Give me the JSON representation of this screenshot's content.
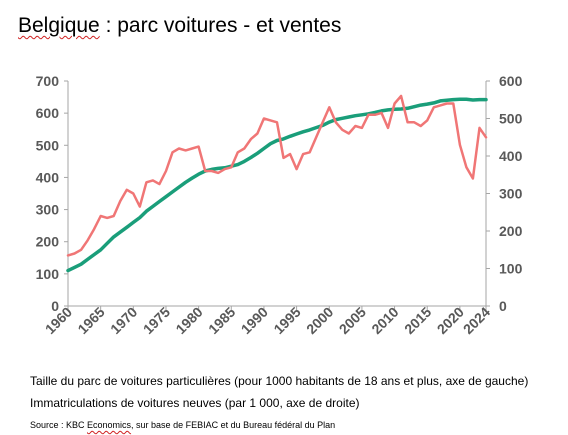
{
  "title": {
    "word1": "Belgique",
    "rest": " : parc voitures - et ventes"
  },
  "notes": {
    "line1": "Taille du parc de voitures particulières (pour 1000 habitants de 18 ans et plus, axe de gauche)",
    "line2": "Immatriculations de voitures neuves (par 1 000, axe de droite)"
  },
  "source": {
    "prefix": "Source : KBC ",
    "word": "Economics",
    "rest": ", sur base de FEBIAC et du Bureau fédéral du Plan"
  },
  "colors": {
    "fleet": "#1a9e7a",
    "sales": "#f07676",
    "axis": "#a6a6a6",
    "tick_text": "#595959"
  },
  "chart_data": {
    "type": "line",
    "x_ticks": [
      "1960",
      "1965",
      "1970",
      "1975",
      "1980",
      "1985",
      "1990",
      "1995",
      "2000",
      "2005",
      "2010",
      "2015",
      "2020",
      "2024"
    ],
    "y_left": {
      "ticks": [
        "0",
        "100",
        "200",
        "300",
        "400",
        "500",
        "600",
        "700"
      ],
      "lim": [
        0,
        700
      ]
    },
    "y_right": {
      "ticks": [
        "0",
        "100",
        "200",
        "300",
        "400",
        "500",
        "600"
      ],
      "lim": [
        0,
        600
      ]
    },
    "xlim": [
      1960,
      2024
    ],
    "grid": false,
    "series": [
      {
        "axis": "left",
        "color": "#1a9e7a",
        "x": [
          1960,
          1961,
          1962,
          1963,
          1964,
          1965,
          1966,
          1967,
          1968,
          1969,
          1970,
          1971,
          1972,
          1973,
          1974,
          1975,
          1976,
          1977,
          1978,
          1979,
          1980,
          1981,
          1982,
          1983,
          1984,
          1985,
          1986,
          1987,
          1988,
          1989,
          1990,
          1991,
          1992,
          1993,
          1994,
          1995,
          1996,
          1997,
          1998,
          1999,
          2000,
          2001,
          2002,
          2003,
          2004,
          2005,
          2006,
          2007,
          2008,
          2009,
          2010,
          2011,
          2012,
          2013,
          2014,
          2015,
          2016,
          2017,
          2018,
          2019,
          2020,
          2021,
          2022,
          2023,
          2024
        ],
        "values": [
          110,
          120,
          130,
          145,
          160,
          175,
          195,
          215,
          230,
          245,
          260,
          275,
          295,
          310,
          325,
          340,
          355,
          370,
          385,
          398,
          410,
          420,
          425,
          428,
          430,
          435,
          440,
          450,
          462,
          475,
          490,
          505,
          515,
          520,
          528,
          535,
          542,
          548,
          555,
          562,
          572,
          580,
          584,
          588,
          592,
          595,
          598,
          602,
          607,
          610,
          612,
          613,
          615,
          620,
          625,
          628,
          632,
          638,
          640,
          642,
          643,
          643,
          641,
          642,
          642
        ]
      },
      {
        "axis": "right",
        "color": "#f07676",
        "x": [
          1960,
          1961,
          1962,
          1963,
          1964,
          1965,
          1966,
          1967,
          1968,
          1969,
          1970,
          1971,
          1972,
          1973,
          1974,
          1975,
          1976,
          1977,
          1978,
          1979,
          1980,
          1981,
          1982,
          1983,
          1984,
          1985,
          1986,
          1987,
          1988,
          1989,
          1990,
          1991,
          1992,
          1993,
          1994,
          1995,
          1996,
          1997,
          1998,
          1999,
          2000,
          2001,
          2002,
          2003,
          2004,
          2005,
          2006,
          2007,
          2008,
          2009,
          2010,
          2011,
          2012,
          2013,
          2014,
          2015,
          2016,
          2017,
          2018,
          2019,
          2020,
          2021,
          2022,
          2023,
          2024
        ],
        "values": [
          135,
          140,
          150,
          175,
          205,
          240,
          235,
          240,
          280,
          310,
          300,
          265,
          330,
          335,
          325,
          360,
          410,
          420,
          415,
          420,
          425,
          360,
          360,
          355,
          365,
          370,
          410,
          420,
          445,
          460,
          500,
          495,
          490,
          395,
          405,
          365,
          405,
          410,
          450,
          490,
          530,
          490,
          470,
          460,
          480,
          475,
          510,
          510,
          515,
          475,
          540,
          560,
          490,
          490,
          480,
          495,
          530,
          535,
          540,
          540,
          430,
          370,
          340,
          475,
          450
        ]
      }
    ]
  }
}
